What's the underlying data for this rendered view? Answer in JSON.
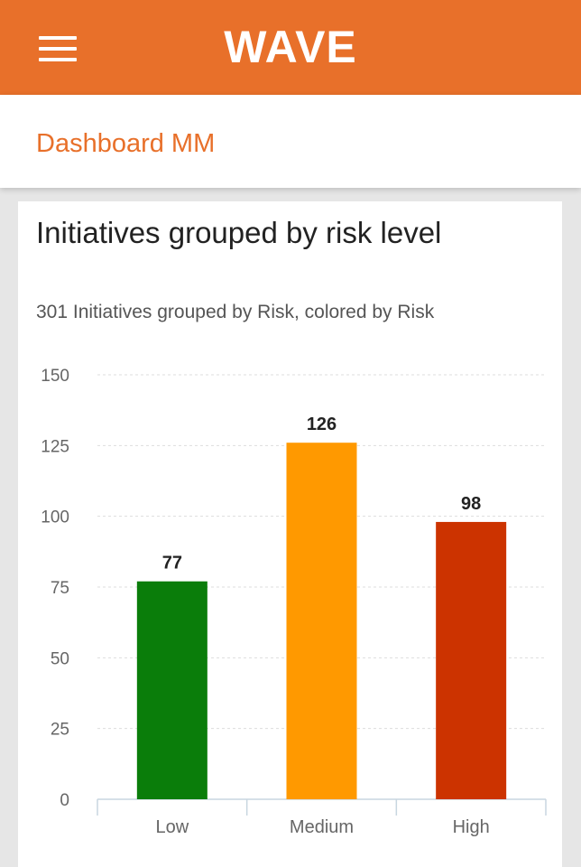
{
  "header": {
    "logo_text": "WAVE",
    "menu_icon": "hamburger-menu-icon",
    "brand_color": "#e8702a"
  },
  "subheader": {
    "title": "Dashboard MM"
  },
  "card": {
    "title": "Initiatives grouped by risk level",
    "subtitle": "301 Initiatives grouped by Risk, colored by Risk"
  },
  "chart_data": {
    "type": "bar",
    "title": "Initiatives grouped by risk level",
    "subtitle": "301 Initiatives grouped by Risk, colored by Risk",
    "categories": [
      "Low",
      "Medium",
      "High"
    ],
    "values": [
      77,
      126,
      98
    ],
    "colors": [
      "#0a7d0a",
      "#ff9900",
      "#cc3300"
    ],
    "ylim": [
      0,
      150
    ],
    "yticks": [
      0,
      25,
      50,
      75,
      100,
      125,
      150
    ],
    "grid": true,
    "xlabel": "",
    "ylabel": ""
  }
}
